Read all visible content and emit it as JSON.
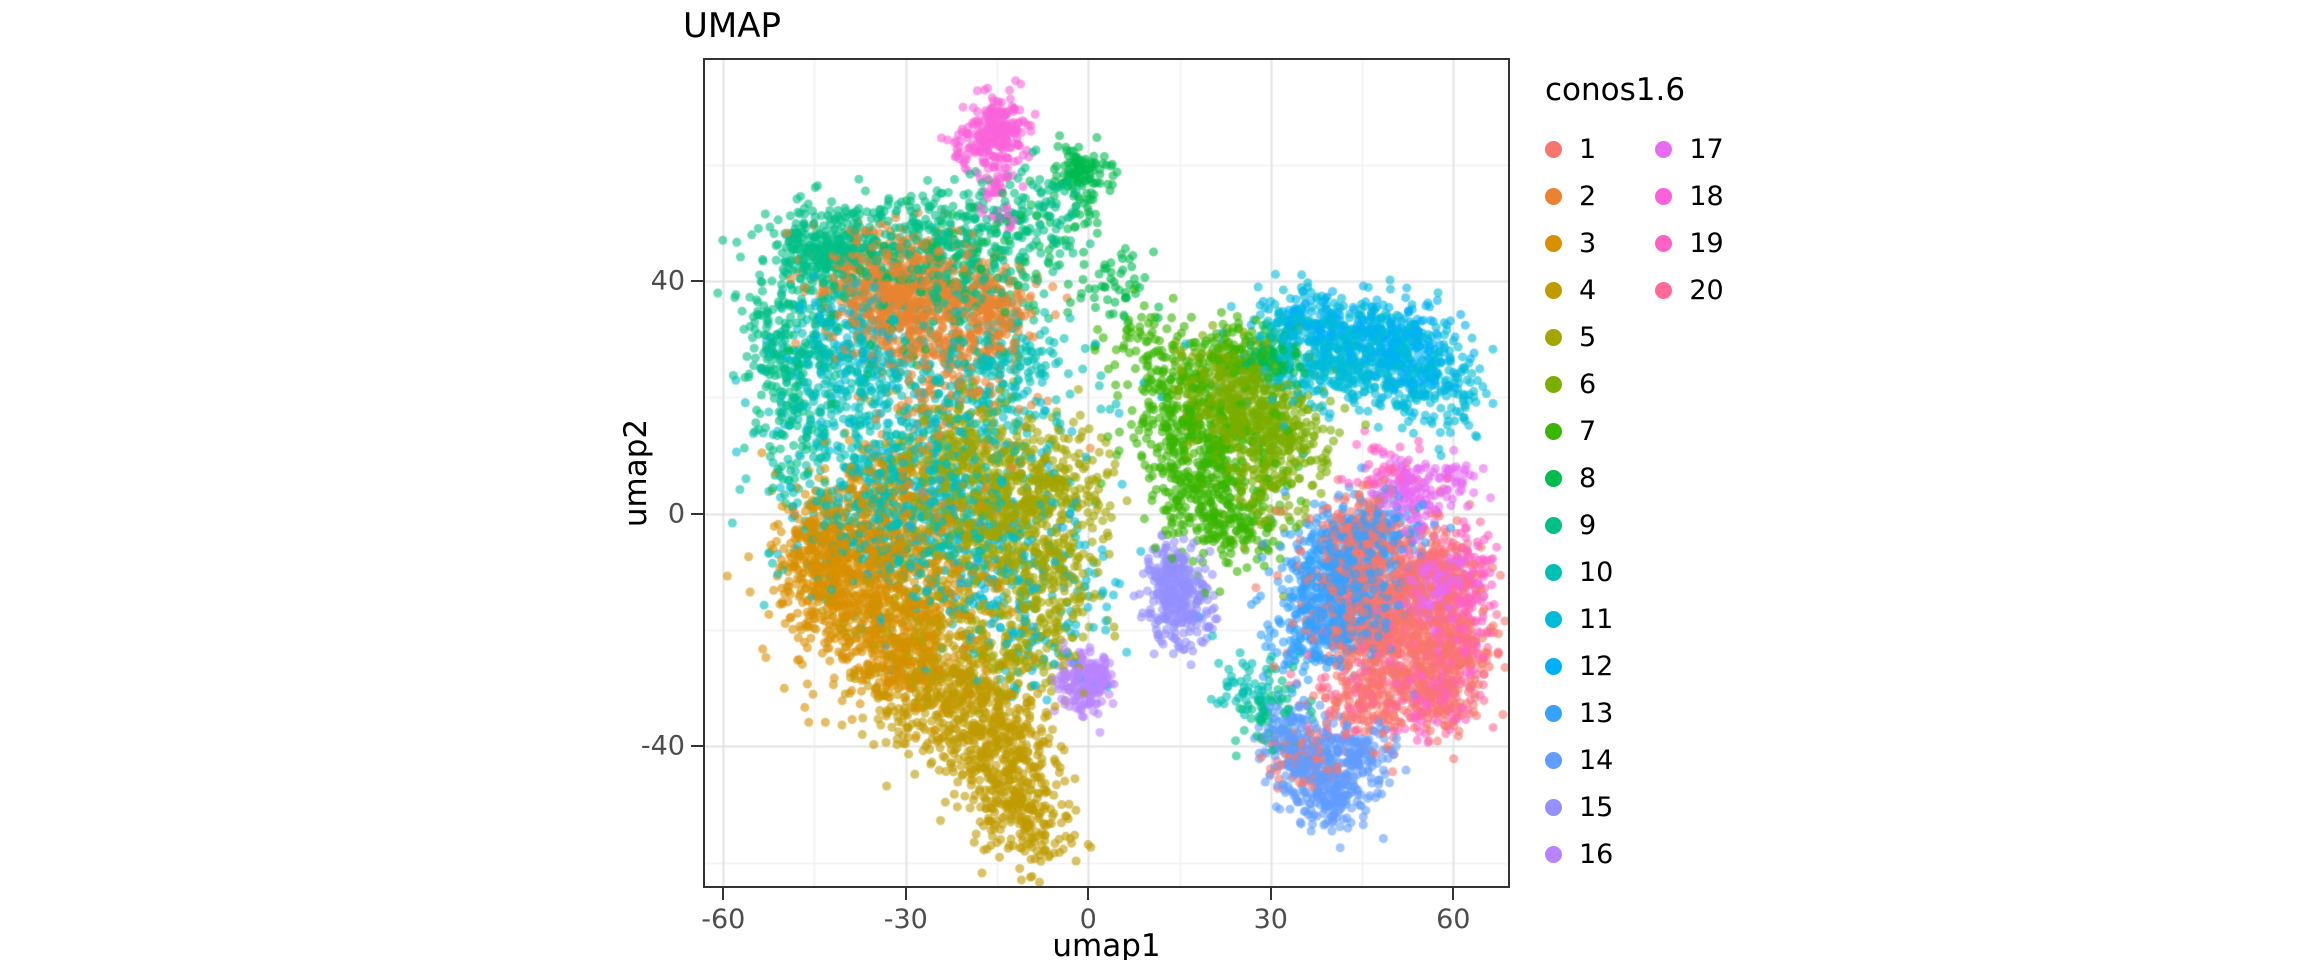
{
  "figure": {
    "title": "UMAP",
    "x_axis": {
      "label": "umap1",
      "ticks": [
        -60,
        -30,
        0,
        30,
        60
      ],
      "minor_ticks": [
        -45,
        -15,
        15,
        45
      ]
    },
    "y_axis": {
      "label": "umap2",
      "ticks": [
        -40,
        0,
        40
      ],
      "minor_ticks": [
        -60,
        -20,
        20,
        60
      ]
    },
    "colors": {
      "panel_bg": "#FFFFFF",
      "grid_major": "#E4E4E4",
      "grid_minor": "#F2F2F2",
      "panel_border": "#333333",
      "tick": "#333333",
      "tick_label": "#4D4D4D"
    }
  },
  "legend": {
    "title": "conos1.6",
    "items": [
      {
        "label": "1",
        "color": "#F8766D"
      },
      {
        "label": "2",
        "color": "#EA8331"
      },
      {
        "label": "3",
        "color": "#D89000"
      },
      {
        "label": "4",
        "color": "#C09B00"
      },
      {
        "label": "5",
        "color": "#A3A500"
      },
      {
        "label": "6",
        "color": "#7CAE00"
      },
      {
        "label": "7",
        "color": "#39B600"
      },
      {
        "label": "8",
        "color": "#00BB4E"
      },
      {
        "label": "9",
        "color": "#00C087"
      },
      {
        "label": "10",
        "color": "#00C0B4"
      },
      {
        "label": "11",
        "color": "#00BCD8"
      },
      {
        "label": "12",
        "color": "#00B0F6"
      },
      {
        "label": "13",
        "color": "#35A2FF"
      },
      {
        "label": "14",
        "color": "#619CFF"
      },
      {
        "label": "15",
        "color": "#9590FF"
      },
      {
        "label": "16",
        "color": "#B983FF"
      },
      {
        "label": "17",
        "color": "#E76BF3"
      },
      {
        "label": "18",
        "color": "#FA62DB"
      },
      {
        "label": "19",
        "color": "#FF61C7"
      },
      {
        "label": "20",
        "color": "#FF6A98"
      }
    ]
  },
  "chart_data": {
    "type": "scatter",
    "title": "UMAP",
    "xlabel": "umap1",
    "ylabel": "umap2",
    "xlim": [
      -63,
      69
    ],
    "ylim": [
      -64,
      78
    ],
    "x_ticks": [
      -60,
      -30,
      0,
      30,
      60
    ],
    "y_ticks": [
      -40,
      0,
      40
    ],
    "grid": true,
    "legend_title": "conos1.6",
    "legend_position": "right",
    "point_alpha": 0.6,
    "point_radius_px": 4.5,
    "series": [
      {
        "name": "1",
        "color": "#F8766D",
        "blobs": [
          [
            51,
            -17,
            7,
            8,
            850
          ],
          [
            44,
            -5,
            4,
            5,
            200
          ],
          [
            59,
            -28,
            3,
            5,
            160
          ],
          [
            36,
            -42,
            3,
            3,
            70
          ],
          [
            47,
            -33,
            5,
            4,
            150
          ]
        ]
      },
      {
        "name": "2",
        "color": "#EA8331",
        "blobs": [
          [
            -32,
            39,
            6,
            5,
            600
          ],
          [
            -16,
            35,
            4,
            4,
            200
          ],
          [
            -25,
            28,
            6,
            4,
            160
          ],
          [
            -24,
            18,
            10,
            10,
            90
          ]
        ]
      },
      {
        "name": "3",
        "color": "#D89000",
        "blobs": [
          [
            -38,
            -12,
            6,
            8,
            650
          ],
          [
            -44,
            -6,
            3,
            5,
            200
          ],
          [
            -30,
            -25,
            5,
            5,
            220
          ],
          [
            -33,
            2,
            5,
            5,
            160
          ],
          [
            -25,
            -10,
            6,
            6,
            150
          ]
        ]
      },
      {
        "name": "4",
        "color": "#C09B00",
        "blobs": [
          [
            -22,
            -31,
            7,
            5,
            420
          ],
          [
            -13,
            -46,
            4,
            6,
            280
          ],
          [
            -8,
            -55,
            3,
            3,
            90
          ],
          [
            -28,
            -18,
            6,
            5,
            140
          ],
          [
            -17,
            -38,
            5,
            4,
            150
          ]
        ]
      },
      {
        "name": "5",
        "color": "#A3A500",
        "blobs": [
          [
            -15,
            0,
            7,
            7,
            520
          ],
          [
            -7,
            -12,
            5,
            5,
            200
          ],
          [
            -20,
            12,
            6,
            5,
            200
          ],
          [
            -10,
            -24,
            5,
            4,
            110
          ],
          [
            -4,
            5,
            4,
            5,
            120
          ]
        ]
      },
      {
        "name": "6",
        "color": "#7CAE00",
        "blobs": [
          [
            26,
            18,
            5,
            5,
            420
          ],
          [
            33,
            12,
            4,
            4,
            130
          ],
          [
            21,
            25,
            4,
            3,
            110
          ],
          [
            29,
            4,
            4,
            5,
            90
          ]
        ]
      },
      {
        "name": "7",
        "color": "#39B600",
        "blobs": [
          [
            19,
            8,
            5,
            7,
            380
          ],
          [
            14,
            18,
            4,
            5,
            150
          ],
          [
            25,
            -2,
            4,
            4,
            110
          ],
          [
            9,
            30,
            3,
            4,
            60
          ],
          [
            24,
            28,
            3,
            3,
            70
          ]
        ]
      },
      {
        "name": "8",
        "color": "#00BB4E",
        "blobs": [
          [
            31,
            27,
            2.5,
            2.5,
            90
          ],
          [
            -1,
            58,
            2.5,
            2.8,
            110
          ],
          [
            -12,
            46,
            7,
            5,
            80
          ],
          [
            5,
            38,
            4,
            4,
            50
          ],
          [
            -30,
            33,
            9,
            7,
            60
          ]
        ]
      },
      {
        "name": "9",
        "color": "#00C087",
        "blobs": [
          [
            -43,
            45,
            5,
            4,
            330
          ],
          [
            -25,
            48,
            7,
            4,
            240
          ],
          [
            -50,
            30,
            4,
            6,
            150
          ],
          [
            -20,
            40,
            8,
            5,
            140
          ],
          [
            -48,
            17,
            3,
            7,
            90
          ],
          [
            30,
            -35,
            3,
            3,
            60
          ],
          [
            -8,
            52,
            4,
            4,
            80
          ]
        ]
      },
      {
        "name": "10",
        "color": "#00C0B4",
        "blobs": [
          [
            -30,
            10,
            10,
            9,
            380
          ],
          [
            -42,
            25,
            6,
            6,
            200
          ],
          [
            -15,
            25,
            7,
            6,
            200
          ],
          [
            -35,
            -3,
            8,
            6,
            150
          ],
          [
            27,
            -30,
            3,
            3,
            50
          ],
          [
            -22,
            -2,
            7,
            7,
            120
          ]
        ]
      },
      {
        "name": "11",
        "color": "#00BCD8",
        "blobs": [
          [
            44,
            27,
            8,
            4.5,
            520
          ],
          [
            -25,
            6,
            12,
            11,
            280
          ],
          [
            -38,
            30,
            6,
            5,
            140
          ],
          [
            -10,
            -16,
            8,
            8,
            140
          ],
          [
            57,
            20,
            4,
            4,
            100
          ],
          [
            36,
            33,
            4,
            3,
            90
          ]
        ]
      },
      {
        "name": "12",
        "color": "#00B0F6",
        "blobs": [
          [
            50,
            30,
            5,
            3,
            190
          ],
          [
            38,
            33,
            4,
            2.5,
            90
          ],
          [
            -18,
            -6,
            10,
            10,
            70
          ],
          [
            55,
            24,
            3,
            3,
            60
          ]
        ]
      },
      {
        "name": "13",
        "color": "#35A2FF",
        "blobs": [
          [
            41,
            -11,
            4.5,
            6,
            430
          ],
          [
            47,
            -4,
            4,
            4,
            150
          ],
          [
            36,
            -21,
            3,
            4,
            110
          ],
          [
            44,
            -18,
            4,
            4,
            100
          ]
        ]
      },
      {
        "name": "14",
        "color": "#619CFF",
        "blobs": [
          [
            39,
            -45,
            4,
            3.5,
            280
          ],
          [
            33,
            -38,
            3,
            3,
            100
          ],
          [
            45,
            -41,
            3,
            3,
            80
          ],
          [
            40,
            -52,
            3,
            2,
            50
          ]
        ]
      },
      {
        "name": "15",
        "color": "#9590FF",
        "blobs": [
          [
            15,
            -15,
            2.8,
            4,
            250
          ],
          [
            13,
            -9,
            2,
            2,
            60
          ]
        ]
      },
      {
        "name": "16",
        "color": "#B983FF",
        "blobs": [
          [
            -1,
            -29,
            2.2,
            2.5,
            150
          ],
          [
            2,
            -27,
            1.5,
            1.5,
            40
          ]
        ]
      },
      {
        "name": "17",
        "color": "#E76BF3",
        "blobs": [
          [
            57,
            -12,
            2.8,
            3.5,
            170
          ],
          [
            53,
            4,
            3,
            3,
            120
          ],
          [
            60,
            6,
            2,
            2,
            40
          ]
        ]
      },
      {
        "name": "18",
        "color": "#FA62DB",
        "blobs": [
          [
            -15,
            66,
            2.5,
            3,
            190
          ],
          [
            -15,
            58,
            1.5,
            3,
            40
          ],
          [
            -14,
            51,
            1,
            2,
            15
          ],
          [
            -20,
            63,
            2,
            2,
            30
          ]
        ]
      },
      {
        "name": "19",
        "color": "#FF61C7",
        "blobs": [
          [
            61,
            -18,
            2.5,
            7,
            130
          ],
          [
            55,
            -32,
            4,
            3,
            60
          ],
          [
            48,
            8,
            3,
            3,
            40
          ],
          [
            63,
            -8,
            2,
            3,
            40
          ]
        ]
      },
      {
        "name": "20",
        "color": "#FF6A98",
        "blobs": [
          [
            52,
            -25,
            6,
            6,
            120
          ],
          [
            58,
            -8,
            3,
            3,
            50
          ],
          [
            44,
            -30,
            4,
            4,
            60
          ],
          [
            61,
            -25,
            2,
            5,
            60
          ]
        ]
      }
    ]
  }
}
